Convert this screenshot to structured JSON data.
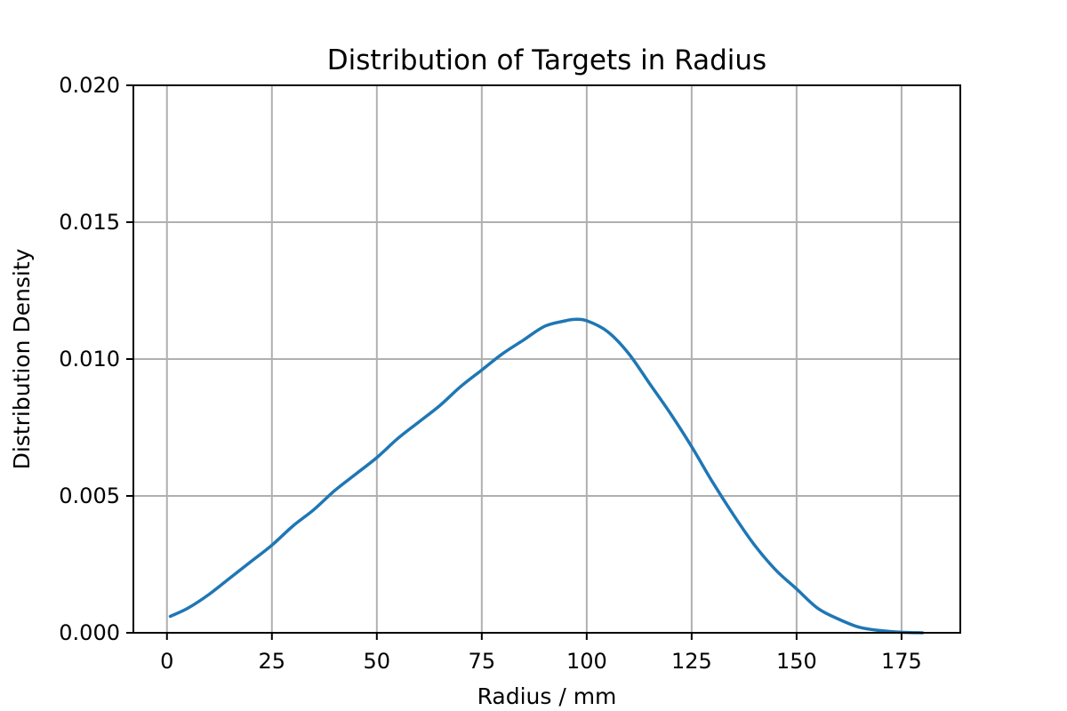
{
  "chart_data": {
    "type": "line",
    "title": "Distribution of Targets in Radius",
    "xlabel": "Radius / mm",
    "ylabel": "Distribution Density",
    "xlim": [
      -8,
      189
    ],
    "ylim": [
      0,
      0.02
    ],
    "xticks": [
      0,
      25,
      50,
      75,
      100,
      125,
      150,
      175
    ],
    "yticks": [
      0.0,
      0.005,
      0.01,
      0.015,
      0.02
    ],
    "xtick_labels": [
      "0",
      "25",
      "50",
      "75",
      "100",
      "125",
      "150",
      "175"
    ],
    "ytick_labels": [
      "0.000",
      "0.005",
      "0.010",
      "0.015",
      "0.020"
    ],
    "grid": true,
    "line_color": "#1f77b4",
    "series": [
      {
        "x": [
          0.8,
          5,
          10,
          15,
          20,
          25,
          30,
          35,
          40,
          45,
          50,
          55,
          60,
          65,
          70,
          75,
          80,
          85,
          90,
          95,
          97,
          100,
          105,
          110,
          115,
          120,
          125,
          130,
          135,
          140,
          145,
          150,
          155,
          160,
          165,
          170,
          175,
          180
        ],
        "y": [
          0.0006,
          0.0009,
          0.0014,
          0.002,
          0.0026,
          0.0032,
          0.0039,
          0.0045,
          0.0052,
          0.0058,
          0.0064,
          0.0071,
          0.0077,
          0.0083,
          0.009,
          0.0096,
          0.0102,
          0.0107,
          0.0112,
          0.0114,
          0.01145,
          0.0114,
          0.011,
          0.0102,
          0.0091,
          0.008,
          0.0068,
          0.0055,
          0.0043,
          0.0032,
          0.0023,
          0.0016,
          0.0009,
          0.0005,
          0.0002,
          8e-05,
          2e-05,
          0.0
        ]
      }
    ]
  }
}
